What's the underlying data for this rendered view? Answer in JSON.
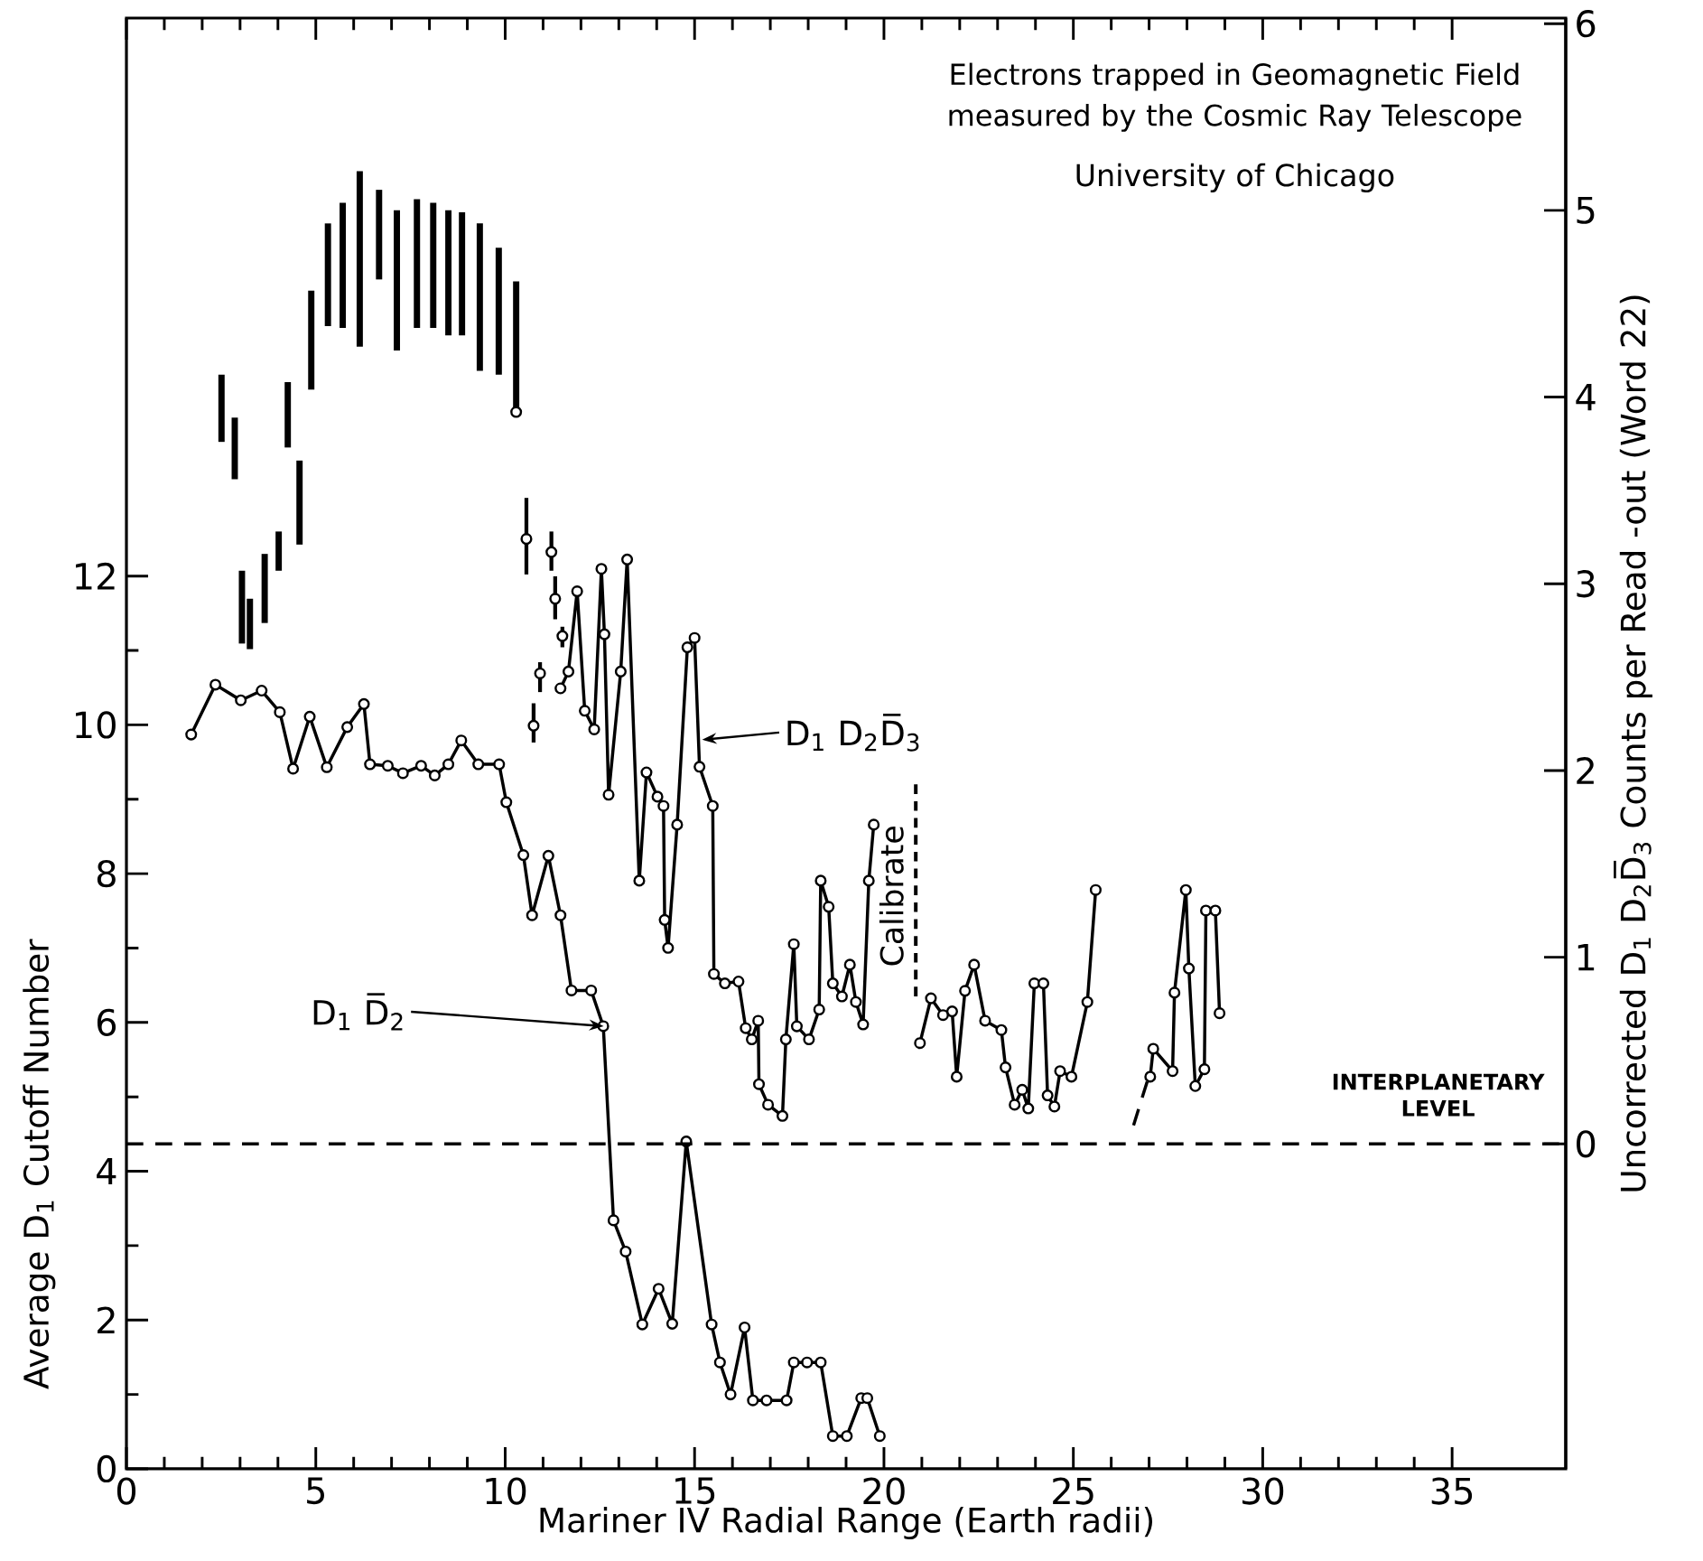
{
  "chart_data": {
    "type": "line",
    "title": "Electrons trapped in Geomagnetic Field measured by the Cosmic Ray Telescope",
    "subtitle": "University of Chicago",
    "xlabel": "Mariner IV Radial Range (Earth radii)",
    "ylabel": "Average D$_{1}$ Cutoff Number",
    "y2label": "Uncorrected D$_{1}$ D$_{2}$D̅$_{3}$ Counts per Read -out (Word 22)",
    "xlim": [
      0,
      38
    ],
    "xticks": [
      0,
      5,
      10,
      15,
      20,
      25,
      30,
      35
    ],
    "ylim": [
      0,
      19.5
    ],
    "yticks": [
      0,
      2,
      4,
      6,
      8,
      10,
      12
    ],
    "y2lim": [
      -1.74,
      6.03
    ],
    "y2ticks": [
      0,
      1,
      2,
      3,
      4,
      5,
      6
    ],
    "marker": "circle",
    "line_style": "solid",
    "series": [
      {
        "color": "#000000",
        "x": [
          1.71,
          2.35,
          3.02,
          3.57,
          4.05,
          4.4,
          4.84,
          5.29,
          5.83,
          6.27,
          6.43,
          6.9,
          7.3,
          7.78,
          8.14,
          8.5,
          8.84,
          9.29,
          9.84,
          10.03,
          10.48,
          10.71,
          11.14,
          11.46,
          11.75,
          12.27,
          12.59,
          12.86,
          13.18,
          13.62,
          14.05,
          14.41,
          14.78,
          15.45,
          15.67,
          15.95,
          16.32,
          16.54,
          16.9,
          17.43,
          17.62,
          17.97,
          18.33,
          18.65,
          19.02,
          19.4,
          19.56,
          19.89
        ],
        "values": [
          9.87,
          10.54,
          10.33,
          10.46,
          10.17,
          9.41,
          10.11,
          9.43,
          9.97,
          10.28,
          9.47,
          9.45,
          9.35,
          9.45,
          9.32,
          9.47,
          9.79,
          9.47,
          9.47,
          8.96,
          8.25,
          7.44,
          8.24,
          7.44,
          6.43,
          6.43,
          5.95,
          3.34,
          2.92,
          1.94,
          2.42,
          1.95,
          4.4,
          1.94,
          1.43,
          1.0,
          1.9,
          0.92,
          0.92,
          0.92,
          1.43,
          1.43,
          1.43,
          0.44,
          0.44,
          0.95,
          0.95,
          0.44
        ]
      },
      {
        "type": "bar",
        "axis": "y2",
        "color": "#000000",
        "x": [
          2.51,
          2.86,
          3.05,
          3.26,
          3.65,
          4.02,
          4.26,
          4.57,
          4.88,
          5.32,
          5.71,
          6.16,
          6.67,
          7.14,
          7.67,
          8.1,
          8.5,
          8.86,
          9.33,
          9.83,
          10.29
        ],
        "base": [
          3.76,
          3.56,
          2.68,
          2.65,
          2.79,
          3.07,
          3.73,
          3.21,
          4.04,
          4.38,
          4.37,
          4.27,
          4.63,
          4.25,
          4.37,
          4.37,
          4.33,
          4.33,
          4.14,
          4.12,
          3.94
        ],
        "values": [
          0.36,
          0.33,
          0.39,
          0.27,
          0.37,
          0.21,
          0.35,
          0.45,
          0.53,
          0.55,
          0.67,
          0.94,
          0.48,
          0.75,
          0.69,
          0.67,
          0.67,
          0.66,
          0.79,
          0.68,
          0.68
        ]
      },
      {
        "type": "scatter",
        "axis": "y2",
        "color": "#000000",
        "x": [
          10.29,
          10.56,
          10.75,
          10.92,
          11.22,
          11.32,
          11.51
        ],
        "values": [
          3.92,
          3.24,
          2.24,
          2.52,
          3.17,
          2.92,
          2.72
        ],
        "errors": [
          null,
          [
            3.05,
            3.46
          ],
          [
            2.15,
            2.36
          ],
          [
            2.42,
            2.58
          ],
          [
            3.07,
            3.28
          ],
          [
            2.81,
            3.04
          ],
          [
            2.66,
            2.77
          ]
        ]
      },
      {
        "axis": "y2",
        "color": "#000000",
        "x": [
          11.46,
          11.67,
          11.9,
          12.1,
          12.35,
          12.54,
          12.62,
          12.73,
          13.05,
          13.22,
          13.54,
          13.73,
          14.02,
          14.18,
          14.21,
          14.3,
          14.54,
          14.81,
          15.0,
          15.13,
          15.48,
          15.51,
          15.8,
          16.16,
          16.35,
          16.51,
          16.68,
          16.7,
          16.94,
          17.32,
          17.41,
          17.62,
          17.7,
          18.02,
          18.29,
          18.33,
          18.54,
          18.65,
          18.89,
          19.1,
          19.26,
          19.45,
          19.6,
          19.73,
          20.3,
          20.95,
          21.24,
          21.56,
          21.8,
          21.92,
          22.14,
          22.38,
          22.67,
          23.1,
          23.21,
          23.45,
          23.65,
          23.81,
          23.97,
          24.21,
          24.32,
          24.5,
          24.65,
          24.95,
          25.37,
          25.59,
          26.1,
          27.03,
          27.11,
          27.62,
          27.67,
          27.97,
          28.05,
          28.22,
          28.46,
          28.5,
          28.75,
          28.86
        ],
        "values": [
          2.44,
          2.53,
          2.96,
          2.32,
          2.22,
          3.08,
          2.73,
          1.87,
          2.53,
          3.13,
          1.41,
          1.99,
          1.86,
          1.81,
          1.2,
          1.05,
          1.71,
          2.66,
          2.71,
          2.02,
          1.81,
          0.91,
          0.86,
          0.87,
          0.62,
          0.56,
          0.66,
          0.32,
          0.21,
          0.15,
          0.56,
          1.07,
          0.63,
          0.56,
          0.72,
          1.41,
          1.27,
          0.86,
          0.79,
          0.96,
          0.76,
          0.64,
          1.41,
          1.71,
          null,
          0.54,
          0.78,
          0.69,
          0.71,
          0.36,
          0.82,
          0.96,
          0.66,
          0.61,
          0.41,
          0.21,
          0.29,
          0.19,
          0.86,
          0.86,
          0.26,
          0.2,
          0.39,
          0.36,
          0.76,
          1.36,
          null,
          0.36,
          0.51,
          0.39,
          0.81,
          1.36,
          0.94,
          0.31,
          0.4,
          1.25,
          1.25,
          0.7
        ]
      },
      {
        "axis": "y2",
        "color": "#000000",
        "marker": "none",
        "line_style": "dashed",
        "x": [
          26.59,
          26.99
        ],
        "values": [
          0.1,
          0.36
        ]
      }
    ],
    "ref_lines": [
      {
        "axis": "y2",
        "value": 0,
        "label": "INTERPLANETARY LEVEL",
        "line_style": "dashed",
        "color": "#000000"
      }
    ],
    "annotations": [
      {
        "text": "D$_{1}$ D̅$_{2}$",
        "x": 12.6,
        "y": 5.95
      },
      {
        "text": "D$_{1}$ D$_{2}$D̅$_{3}$",
        "x": 15.2,
        "y": 9.8
      },
      "Calibrate"
    ]
  }
}
